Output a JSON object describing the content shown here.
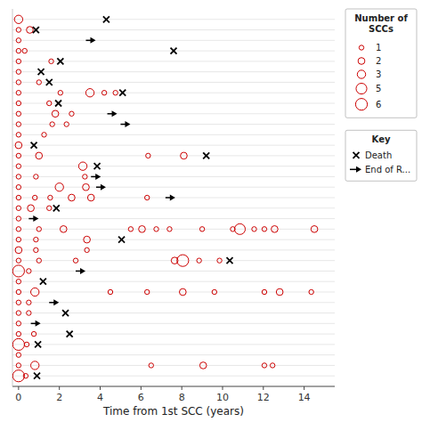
{
  "chart_data": {
    "type": "swimmer",
    "xlabel": "Time from 1st SCC (years)",
    "xlim": [
      -0.3,
      15.5
    ],
    "xticks": [
      0,
      2,
      4,
      6,
      8,
      10,
      12,
      14
    ],
    "ylim": [
      0,
      36
    ],
    "yticks": [
      1,
      2,
      3,
      4,
      5,
      6,
      7,
      8,
      9,
      10,
      11,
      12,
      13,
      14,
      15,
      16,
      17,
      18,
      19,
      20,
      21,
      22,
      23,
      24,
      25,
      26,
      27,
      28,
      29,
      30,
      31,
      32,
      33,
      34,
      35
    ],
    "grid": true,
    "tick_labels": "x",
    "color": "#cc0000",
    "patients": [
      {
        "row": 35,
        "t": [
          0
        ],
        "n": [
          3
        ],
        "death": 4.3,
        "eor": null
      },
      {
        "row": 34,
        "t": [
          0,
          0.55
        ],
        "n": [
          1,
          2
        ],
        "death": 0.85,
        "eor": null
      },
      {
        "row": 33,
        "t": [
          0
        ],
        "n": [
          1
        ],
        "death": null,
        "eor": 3.3
      },
      {
        "row": 32,
        "t": [
          0,
          0.3
        ],
        "n": [
          1,
          1
        ],
        "death": 7.6,
        "eor": null
      },
      {
        "row": 31,
        "t": [
          0,
          1.6
        ],
        "n": [
          1,
          1
        ],
        "death": 2.05,
        "eor": null
      },
      {
        "row": 30,
        "t": [
          0
        ],
        "n": [
          1
        ],
        "death": 1.1,
        "eor": null
      },
      {
        "row": 29,
        "t": [
          0,
          1.0
        ],
        "n": [
          1,
          1
        ],
        "death": 1.5,
        "eor": null
      },
      {
        "row": 28,
        "t": [
          0,
          2.05,
          3.5,
          4.2,
          4.75
        ],
        "n": [
          1,
          1,
          3,
          1,
          1
        ],
        "death": 5.1,
        "eor": null
      },
      {
        "row": 27,
        "t": [
          0,
          1.5
        ],
        "n": [
          1,
          1
        ],
        "death": 1.95,
        "eor": null
      },
      {
        "row": 26,
        "t": [
          0,
          1.8,
          2.6
        ],
        "n": [
          1,
          2,
          1
        ],
        "death": null,
        "eor": 4.35
      },
      {
        "row": 25,
        "t": [
          0,
          1.65,
          2.35
        ],
        "n": [
          1,
          1,
          1
        ],
        "death": null,
        "eor": 5.0
      },
      {
        "row": 24,
        "t": [
          0,
          1.25
        ],
        "n": [
          1,
          1
        ],
        "death": null,
        "eor": null
      },
      {
        "row": 23,
        "t": [
          0
        ],
        "n": [
          2
        ],
        "death": 0.75,
        "eor": null
      },
      {
        "row": 22,
        "t": [
          0,
          1.0,
          6.35,
          8.1
        ],
        "n": [
          1,
          2,
          1,
          2
        ],
        "death": 9.2,
        "eor": null
      },
      {
        "row": 21,
        "t": [
          0,
          3.15
        ],
        "n": [
          1,
          3
        ],
        "death": 3.85,
        "eor": null
      },
      {
        "row": 20,
        "t": [
          0,
          0.85,
          3.25
        ],
        "n": [
          1,
          1,
          1
        ],
        "death": null,
        "eor": 3.55
      },
      {
        "row": 19,
        "t": [
          0,
          2.0,
          3.3
        ],
        "n": [
          1,
          3,
          2
        ],
        "death": null,
        "eor": 3.8
      },
      {
        "row": 18,
        "t": [
          0,
          0.8,
          1.55,
          2.6,
          3.55,
          6.3
        ],
        "n": [
          1,
          1,
          1,
          2,
          2,
          1
        ],
        "death": null,
        "eor": 7.2
      },
      {
        "row": 17,
        "t": [
          0,
          0.6,
          1.5
        ],
        "n": [
          1,
          2,
          1
        ],
        "death": 1.85,
        "eor": null
      },
      {
        "row": 16,
        "t": [
          0
        ],
        "n": [
          1
        ],
        "death": null,
        "eor": 0.5
      },
      {
        "row": 15,
        "t": [
          0,
          1.0,
          2.2,
          5.5,
          6.05,
          6.75,
          7.4,
          9.0,
          10.5,
          10.85,
          11.55,
          12.05,
          12.55,
          14.5
        ],
        "n": [
          1,
          1,
          2,
          1,
          2,
          1,
          1,
          1,
          1,
          5,
          1,
          1,
          2,
          2
        ],
        "death": null,
        "eor": null
      },
      {
        "row": 14,
        "t": [
          0,
          0.85,
          3.35
        ],
        "n": [
          1,
          1,
          2
        ],
        "death": 5.05,
        "eor": null
      },
      {
        "row": 13,
        "t": [
          0,
          0.85,
          3.35
        ],
        "n": [
          2,
          1,
          1
        ],
        "death": null,
        "eor": null
      },
      {
        "row": 12,
        "t": [
          0,
          1.0,
          2.8,
          7.65,
          8.05,
          8.85,
          9.85
        ],
        "n": [
          1,
          1,
          1,
          2,
          6,
          1,
          1
        ],
        "death": 10.35,
        "eor": null
      },
      {
        "row": 11,
        "t": [
          0,
          0.5
        ],
        "n": [
          6,
          1
        ],
        "death": null,
        "eor": 2.8
      },
      {
        "row": 10,
        "t": [
          0
        ],
        "n": [
          1
        ],
        "death": 1.2,
        "eor": null
      },
      {
        "row": 9,
        "t": [
          0,
          0.8,
          4.5,
          6.3,
          8.05,
          9.6,
          12.05,
          12.8,
          14.35
        ],
        "n": [
          1,
          3,
          1,
          1,
          2,
          1,
          1,
          2,
          1
        ],
        "death": null,
        "eor": null
      },
      {
        "row": 8,
        "t": [
          0,
          0.5
        ],
        "n": [
          1,
          1
        ],
        "death": null,
        "eor": 1.5
      },
      {
        "row": 7,
        "t": [
          0,
          0.5
        ],
        "n": [
          1,
          1
        ],
        "death": 2.3,
        "eor": null
      },
      {
        "row": 6,
        "t": [
          0
        ],
        "n": [
          1
        ],
        "death": null,
        "eor": 0.6
      },
      {
        "row": 5,
        "t": [
          0,
          0.75
        ],
        "n": [
          1,
          1
        ],
        "death": 2.5,
        "eor": null
      },
      {
        "row": 4,
        "t": [
          0,
          0.4
        ],
        "n": [
          6,
          1
        ],
        "death": 0.95,
        "eor": null
      },
      {
        "row": 3,
        "t": [
          0
        ],
        "n": [
          1
        ],
        "death": null,
        "eor": null
      },
      {
        "row": 2,
        "t": [
          0,
          0.8,
          6.5,
          9.05,
          12.05,
          12.45
        ],
        "n": [
          1,
          3,
          1,
          2,
          1,
          1
        ],
        "death": null,
        "eor": null
      },
      {
        "row": 1,
        "t": [
          0,
          0.35
        ],
        "n": [
          6,
          1
        ],
        "death": 0.9,
        "eor": null
      }
    ],
    "size_legend": {
      "title": "Number of\nSCCs",
      "values": [
        1,
        2,
        3,
        5,
        6
      ]
    },
    "key": {
      "title": "Key",
      "entries": [
        {
          "name": "Death",
          "marker": "x",
          "color": "#000000"
        },
        {
          "name": "End of R...",
          "marker": "arrow",
          "color": "#000000"
        }
      ]
    }
  }
}
